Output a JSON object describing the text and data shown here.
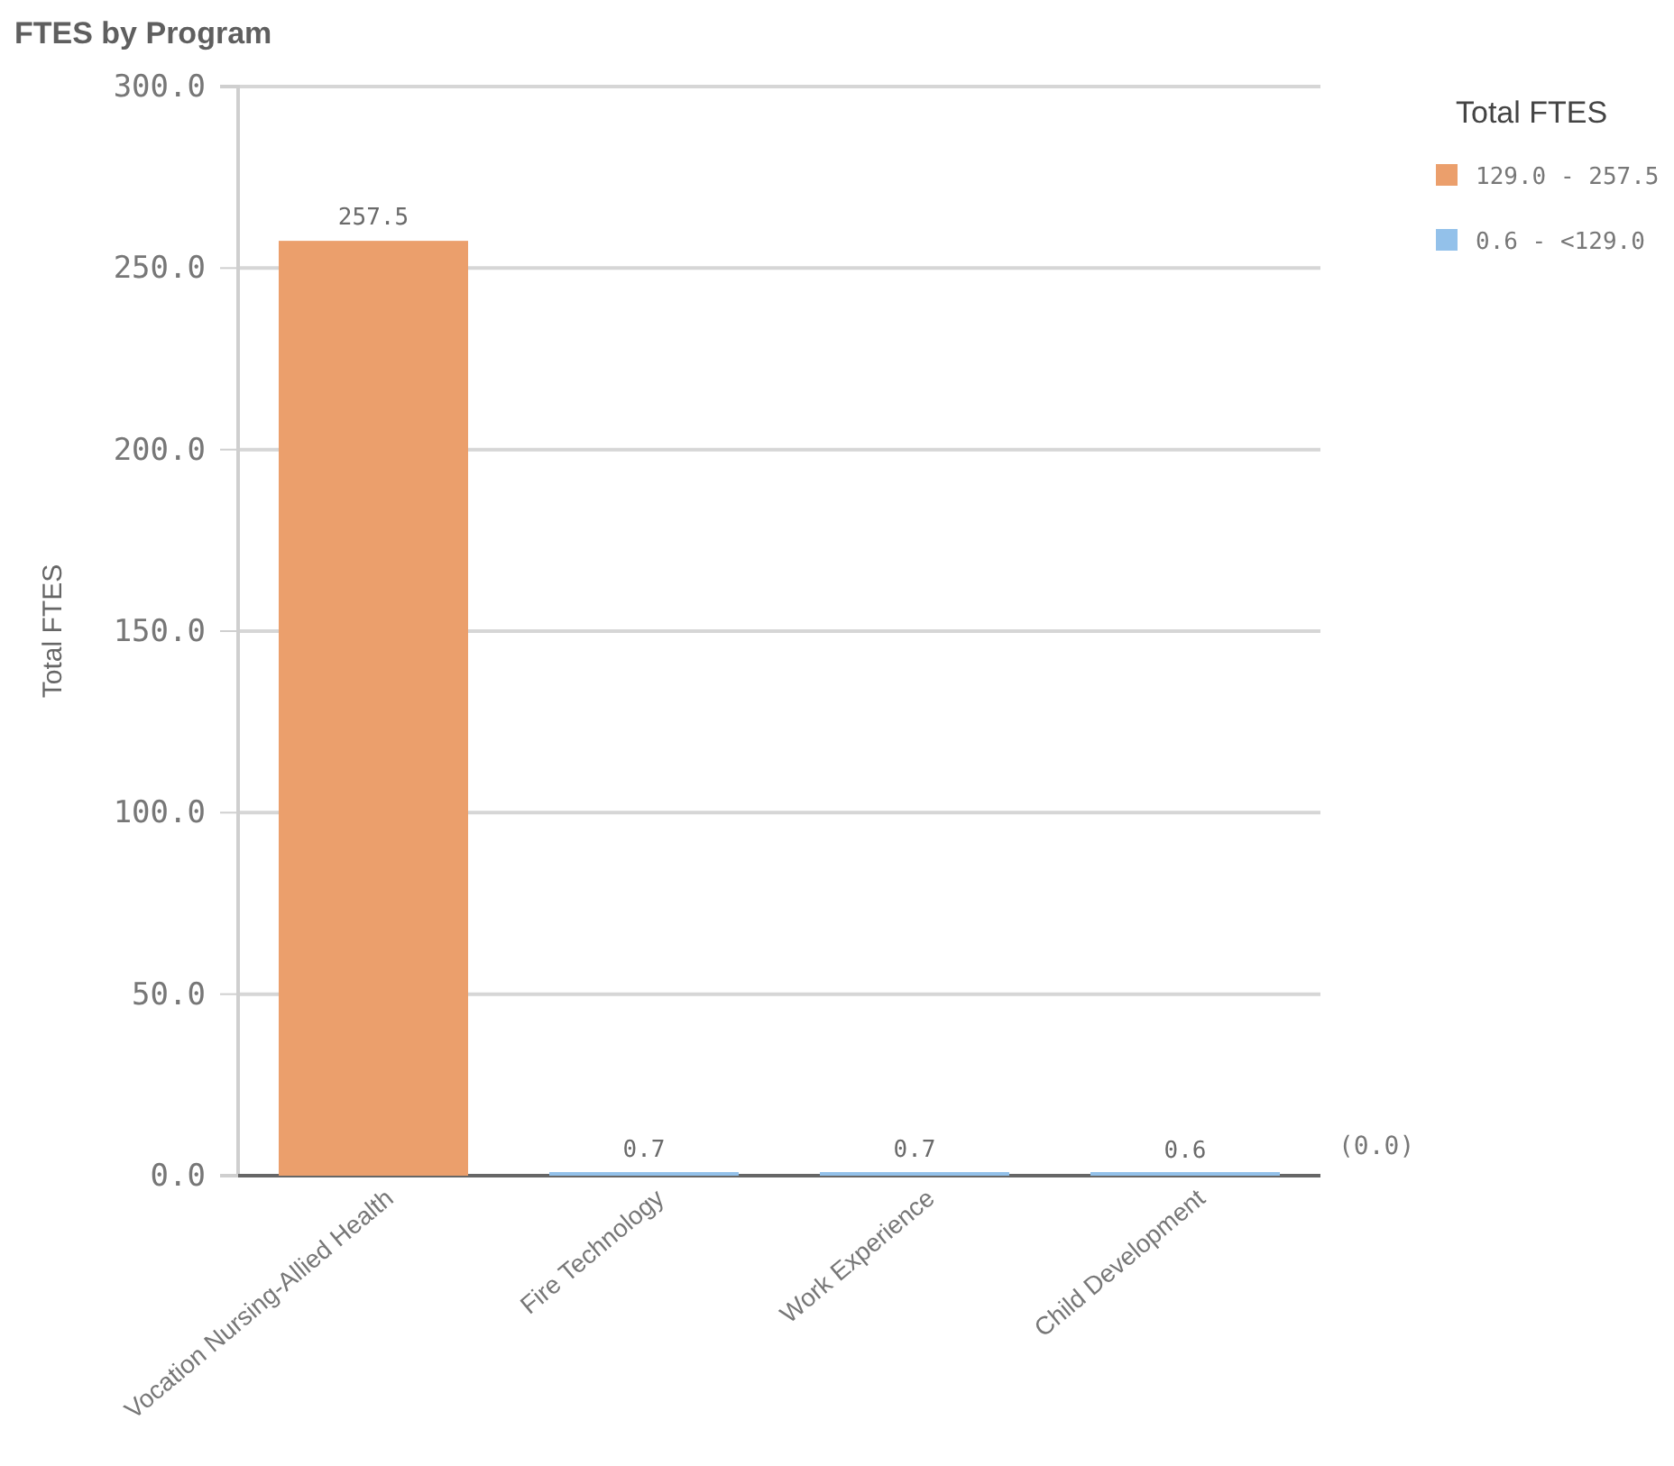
{
  "chart_data": {
    "type": "bar",
    "title": "FTES by Program",
    "ylabel": "Total FTES",
    "legend_title": "Total FTES",
    "categories": [
      "Vocation Nursing-Allied Health",
      "Fire Technology",
      "Work Experience",
      "Child Development"
    ],
    "series": [
      {
        "name": "129.0 - 257.5",
        "color": "#eb9f6c",
        "values": [
          257.5,
          null,
          null,
          null
        ]
      },
      {
        "name": "0.6 - <129.0",
        "color": "#93c1ea",
        "values": [
          null,
          0.7,
          0.7,
          0.6
        ]
      }
    ],
    "stacked": true,
    "ylim": [
      0,
      300
    ],
    "yticks": [
      {
        "value": 0,
        "label": "0.0"
      },
      {
        "value": 50,
        "label": "50.0"
      },
      {
        "value": 100,
        "label": "100.0"
      },
      {
        "value": 150,
        "label": "150.0"
      },
      {
        "value": 200,
        "label": "200.0"
      },
      {
        "value": 250,
        "label": "250.0"
      },
      {
        "value": 300,
        "label": "300.0"
      }
    ],
    "grid": "y",
    "legend": "top right",
    "data_labels": true,
    "annotations": [
      "(0.0)"
    ]
  }
}
